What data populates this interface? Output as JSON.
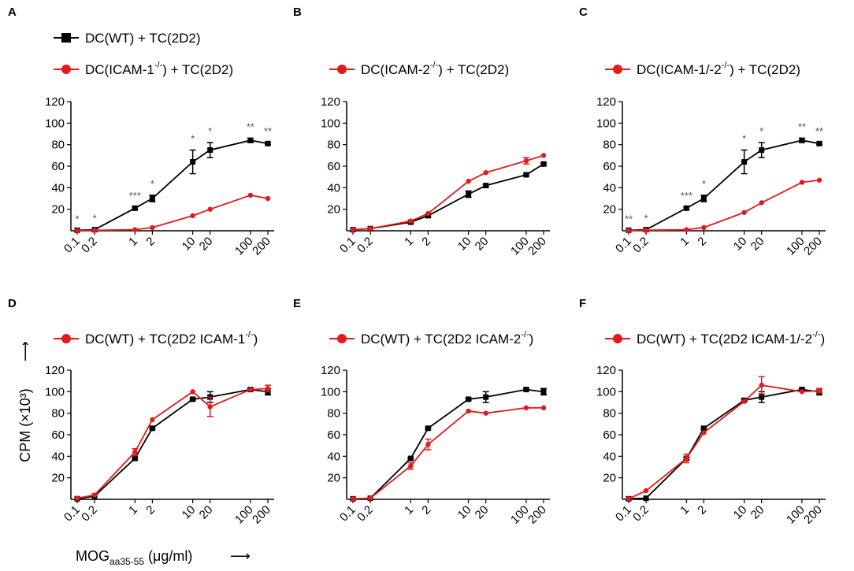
{
  "colors": {
    "wt": "#000000",
    "ko": "#e31a1c",
    "star": "#555555"
  },
  "axis_labels": {
    "y_label": "CPM (×10³)",
    "y_arrow": "⟶",
    "x_label_main": "MOG",
    "x_label_sub": "aa35-55",
    "x_label_unit": " (μg/ml)",
    "x_arrow": "⟶"
  },
  "chart_data": [
    {
      "panel": "A",
      "type": "line",
      "xscale": "log",
      "x": [
        0.1,
        0.2,
        1,
        2,
        10,
        20,
        100,
        200
      ],
      "x_tick_labels": [
        "0.1",
        "0.2",
        "1",
        "2",
        "10",
        "20",
        "100",
        "200"
      ],
      "y_ticks": [
        20,
        40,
        60,
        80,
        100,
        120
      ],
      "ylim": [
        0,
        120
      ],
      "legend": [
        {
          "label": "DC(WT) + TC(2D2)",
          "sup": "",
          "suffix": "",
          "color": "#000000",
          "marker": "square"
        },
        {
          "label": "DC(ICAM-1",
          "sup": "-/-",
          "suffix": ") + TC(2D2)",
          "color": "#e31a1c",
          "marker": "circle"
        }
      ],
      "series": [
        {
          "name": "DC(WT) + TC(2D2)",
          "color": "#000000",
          "marker": "square",
          "values": [
            0.5,
            1.0,
            21,
            30,
            64,
            75,
            84,
            81
          ],
          "errors": [
            0,
            0,
            1,
            3,
            11,
            7,
            2,
            1
          ]
        },
        {
          "name": "DC(ICAM-1-/-) + TC(2D2)",
          "color": "#e31a1c",
          "marker": "circle",
          "values": [
            0.3,
            0.5,
            1,
            3,
            14,
            20,
            33,
            30
          ],
          "errors": [
            0,
            0,
            0,
            0,
            0,
            0,
            0,
            0
          ]
        }
      ],
      "significance": [
        "*",
        "*",
        "***",
        "*",
        "*",
        "*",
        "**",
        "**"
      ]
    },
    {
      "panel": "B",
      "type": "line",
      "xscale": "log",
      "x": [
        0.1,
        0.2,
        1,
        2,
        10,
        20,
        100,
        200
      ],
      "x_tick_labels": [
        "0.1",
        "0.2",
        "1",
        "2",
        "10",
        "20",
        "100",
        "200"
      ],
      "y_ticks": [
        20,
        40,
        60,
        80,
        100,
        120
      ],
      "ylim": [
        0,
        120
      ],
      "legend": [
        {
          "label": "DC(ICAM-2",
          "sup": "-/-",
          "suffix": ") + TC(2D2)",
          "color": "#e31a1c",
          "marker": "circle"
        }
      ],
      "series": [
        {
          "name": "DC(WT) + TC(2D2)",
          "color": "#000000",
          "marker": "square",
          "values": [
            1,
            2,
            8,
            14,
            34,
            42,
            52,
            62
          ],
          "errors": [
            0,
            0,
            1,
            1,
            3,
            1,
            1,
            1
          ]
        },
        {
          "name": "DC(ICAM-2-/-) + TC(2D2)",
          "color": "#e31a1c",
          "marker": "circle",
          "values": [
            1,
            2,
            9,
            16,
            46,
            54,
            65,
            70
          ],
          "errors": [
            0,
            0,
            0,
            0,
            0,
            0,
            3,
            0
          ]
        }
      ],
      "significance": []
    },
    {
      "panel": "C",
      "type": "line",
      "xscale": "log",
      "x": [
        0.1,
        0.2,
        1,
        2,
        10,
        20,
        100,
        200
      ],
      "x_tick_labels": [
        "0.1",
        "0.2",
        "1",
        "2",
        "10",
        "20",
        "100",
        "200"
      ],
      "y_ticks": [
        20,
        40,
        60,
        80,
        100,
        120
      ],
      "ylim": [
        0,
        120
      ],
      "legend": [
        {
          "label": "DC(ICAM-1/-2",
          "sup": "-/-",
          "suffix": ") + TC(2D2)",
          "color": "#e31a1c",
          "marker": "circle"
        }
      ],
      "series": [
        {
          "name": "DC(WT) + TC(2D2)",
          "color": "#000000",
          "marker": "square",
          "values": [
            0.5,
            1.0,
            21,
            30,
            64,
            75,
            84,
            81
          ],
          "errors": [
            0,
            0,
            1,
            3,
            11,
            7,
            2,
            1
          ]
        },
        {
          "name": "DC(ICAM-1/-2-/-) + TC(2D2)",
          "color": "#e31a1c",
          "marker": "circle",
          "values": [
            0.3,
            0.5,
            1,
            3,
            17,
            26,
            45,
            47
          ],
          "errors": [
            0,
            0,
            0,
            0,
            0,
            0,
            0,
            0
          ]
        }
      ],
      "significance": [
        "**",
        "*",
        "***",
        "*",
        "*",
        "*",
        "**",
        "**"
      ]
    },
    {
      "panel": "D",
      "type": "line",
      "xscale": "log",
      "x": [
        0.1,
        0.2,
        1,
        2,
        10,
        20,
        100,
        200
      ],
      "x_tick_labels": [
        "0.1",
        "0.2",
        "1",
        "2",
        "10",
        "20",
        "100",
        "200"
      ],
      "y_ticks": [
        20,
        40,
        60,
        80,
        100,
        120
      ],
      "ylim": [
        0,
        120
      ],
      "legend": [
        {
          "label": "DC(WT) + TC(2D2 ICAM-1",
          "sup": "-/-",
          "suffix": ")",
          "color": "#e31a1c",
          "marker": "circle"
        }
      ],
      "series": [
        {
          "name": "DC(WT) + TC(2D2)",
          "color": "#000000",
          "marker": "square",
          "values": [
            0.5,
            3,
            38,
            66,
            93,
            95,
            102,
            100
          ],
          "errors": [
            0,
            0,
            1,
            1,
            1,
            5,
            1,
            3
          ]
        },
        {
          "name": "DC(WT) + TC(2D2 ICAM-1-/-)",
          "color": "#e31a1c",
          "marker": "circle",
          "values": [
            1,
            4,
            44,
            74,
            100,
            86,
            102,
            103
          ],
          "errors": [
            0,
            0,
            3,
            0,
            0,
            9,
            0,
            3
          ]
        }
      ],
      "significance": []
    },
    {
      "panel": "E",
      "type": "line",
      "xscale": "log",
      "x": [
        0.1,
        0.2,
        1,
        2,
        10,
        20,
        100,
        200
      ],
      "x_tick_labels": [
        "0.1",
        "0.2",
        "1",
        "2",
        "10",
        "20",
        "100",
        "200"
      ],
      "y_ticks": [
        20,
        40,
        60,
        80,
        100,
        120
      ],
      "ylim": [
        0,
        120
      ],
      "legend": [
        {
          "label": "DC(WT) + TC(2D2 ICAM-2",
          "sup": "-/-",
          "suffix": ")",
          "color": "#e31a1c",
          "marker": "circle"
        }
      ],
      "series": [
        {
          "name": "DC(WT) + TC(2D2)",
          "color": "#000000",
          "marker": "square",
          "values": [
            0.5,
            1,
            38,
            66,
            93,
            95,
            102,
            100
          ],
          "errors": [
            0,
            0,
            1,
            1,
            1,
            5,
            1,
            3
          ]
        },
        {
          "name": "DC(WT) + TC(2D2 ICAM-2-/-)",
          "color": "#e31a1c",
          "marker": "circle",
          "values": [
            0.5,
            1,
            31,
            51,
            82,
            80,
            85,
            85
          ],
          "errors": [
            0,
            0,
            3,
            5,
            0,
            0,
            0,
            0
          ]
        }
      ],
      "significance": []
    },
    {
      "panel": "F",
      "type": "line",
      "xscale": "log",
      "x": [
        0.1,
        0.2,
        1,
        2,
        10,
        20,
        100,
        200
      ],
      "x_tick_labels": [
        "0.1",
        "0.2",
        "1",
        "2",
        "10",
        "20",
        "100",
        "200"
      ],
      "y_ticks": [
        20,
        40,
        60,
        80,
        100,
        120
      ],
      "ylim": [
        0,
        120
      ],
      "legend": [
        {
          "label": "DC(WT) + TC(2D2 ICAM-1/-2",
          "sup": "-/-",
          "suffix": ")",
          "color": "#e31a1c",
          "marker": "circle"
        }
      ],
      "series": [
        {
          "name": "DC(WT) + TC(2D2)",
          "color": "#000000",
          "marker": "square",
          "values": [
            0.5,
            1,
            38,
            66,
            92,
            95,
            102,
            100
          ],
          "errors": [
            0,
            0,
            1,
            1,
            1,
            5,
            1,
            3
          ]
        },
        {
          "name": "DC(WT) + TC(2D2 ICAM-1/-2-/-)",
          "color": "#e31a1c",
          "marker": "circle",
          "values": [
            0.5,
            8,
            38,
            62,
            91,
            106,
            100,
            101
          ],
          "errors": [
            0,
            0,
            4,
            0,
            0,
            8,
            0,
            2
          ]
        }
      ],
      "significance": []
    }
  ]
}
